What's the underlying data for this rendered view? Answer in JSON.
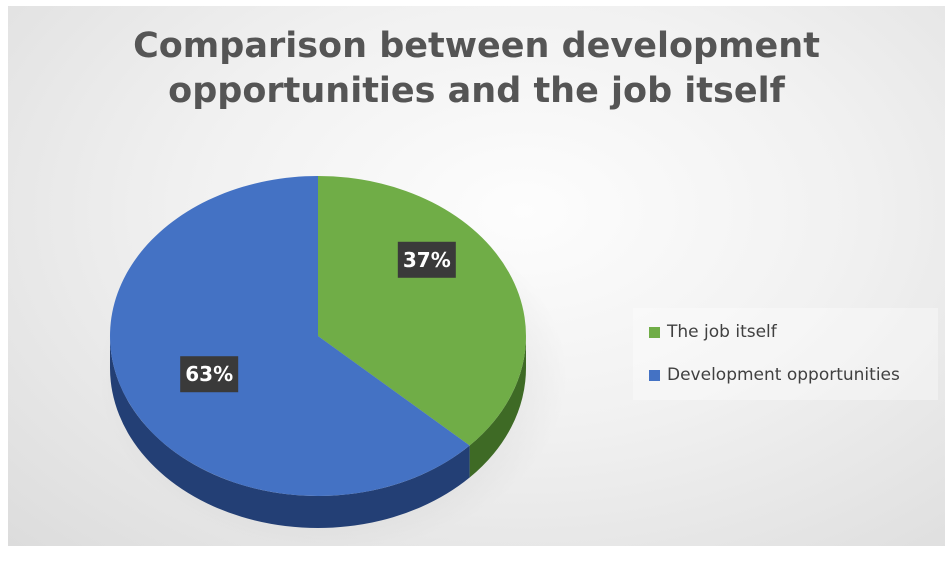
{
  "chart_data": {
    "type": "pie",
    "title": "Comparison between development opportunities and the job itself",
    "title_lines": [
      "Comparison between development",
      "opportunities and the job itself"
    ],
    "categories": [
      "The job itself",
      "Development opportunities"
    ],
    "values": [
      37,
      63
    ],
    "labels": [
      "37%",
      "63%"
    ],
    "colors": [
      "#70ad47",
      "#4472c4"
    ],
    "side_colors": [
      "#3e6a25",
      "#233f75"
    ],
    "style": "3d",
    "legend": "right"
  }
}
